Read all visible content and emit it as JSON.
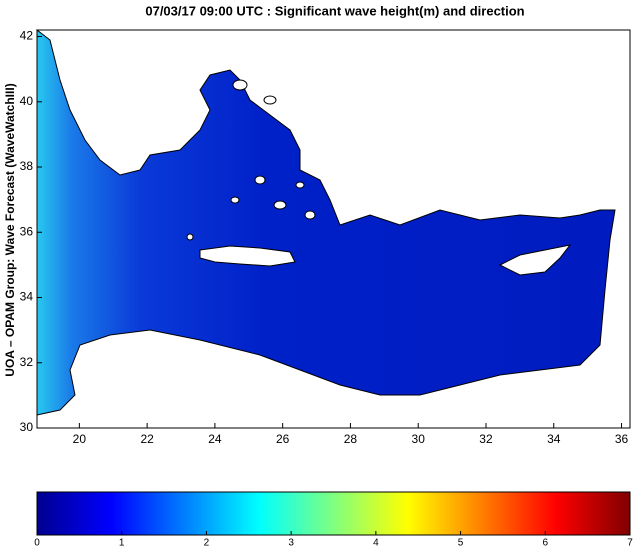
{
  "title": "07/03/17 09:00 UTC : Significant wave height(m) and direction",
  "ylabel": "UOA – OPAM Group: Wave Forecast (WaveWatchIII)",
  "map": {
    "xlim": [
      18.75,
      36.25
    ],
    "ylim": [
      30,
      42.2
    ],
    "xticks": [
      20,
      22,
      24,
      26,
      28,
      30,
      32,
      34,
      36
    ],
    "yticks": [
      30,
      32,
      34,
      36,
      38,
      40,
      42
    ]
  },
  "colorbar": {
    "lim": [
      0,
      7
    ],
    "ticks": [
      0,
      1,
      2,
      3,
      4,
      5,
      6,
      7
    ]
  }
}
